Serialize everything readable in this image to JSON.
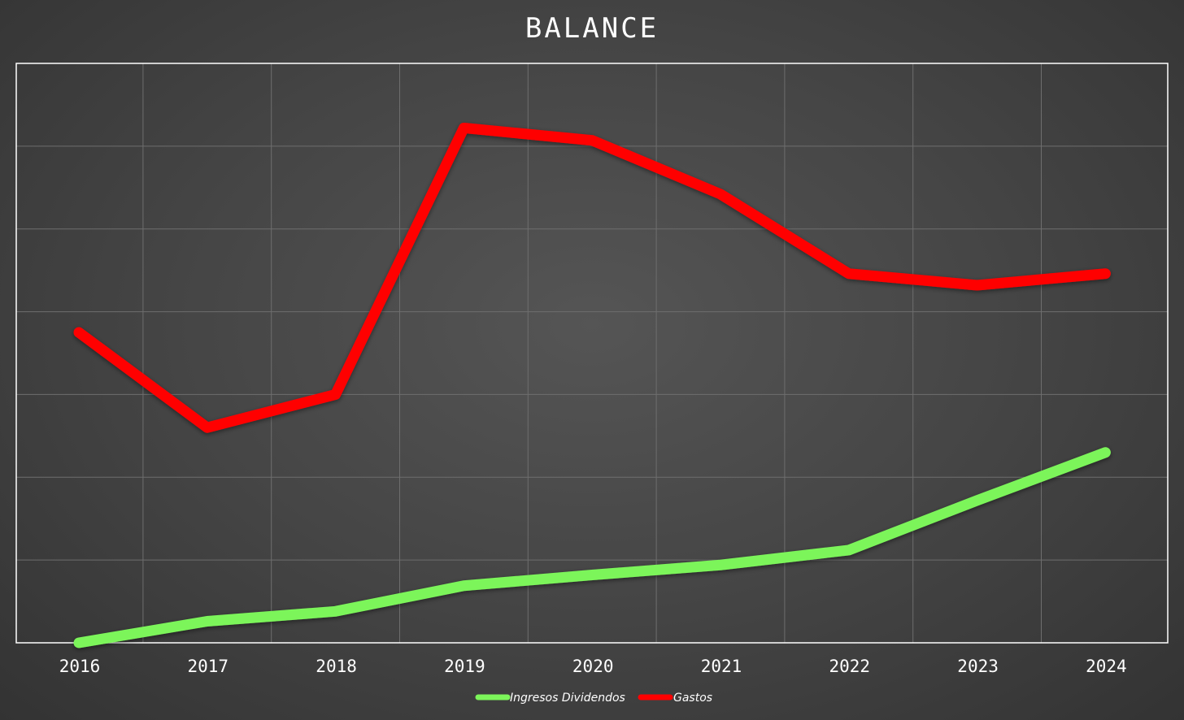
{
  "chart_data": {
    "type": "line",
    "title": "BALANCE",
    "x": [
      "2016",
      "2017",
      "2018",
      "2019",
      "2020",
      "2021",
      "2022",
      "2023",
      "2024"
    ],
    "ylim": [
      0,
      7
    ],
    "y_tick_labels_shown": false,
    "grid": true,
    "legend_position": "bottom-center",
    "series": [
      {
        "name": "Ingresos Dividendos",
        "color": "#7CF55A",
        "values": [
          0.0,
          0.26,
          0.38,
          0.69,
          0.82,
          0.94,
          1.12,
          1.72,
          2.3
        ]
      },
      {
        "name": "Gastos",
        "color": "#FF0000",
        "values": [
          3.75,
          2.6,
          3.0,
          6.22,
          6.07,
          5.42,
          4.46,
          4.32,
          4.46
        ]
      }
    ]
  }
}
